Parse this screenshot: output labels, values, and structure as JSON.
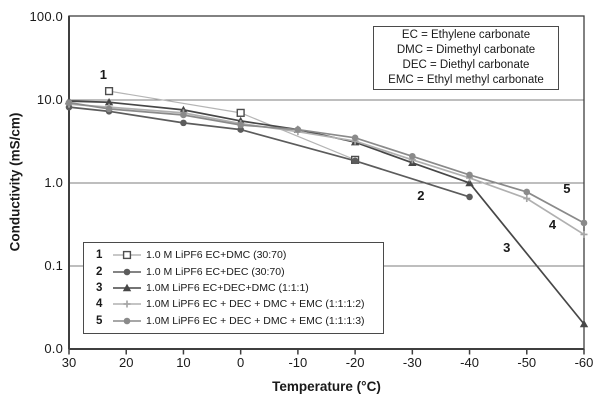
{
  "chart_data": {
    "type": "line",
    "title": "",
    "xlabel": "Temperature (°C)",
    "ylabel": "Conductivity (mS/cm)",
    "y_scale": "log",
    "grid": true,
    "legend_position": "bottom-left",
    "xlim": [
      30,
      -60
    ],
    "ylim": [
      0.01,
      100
    ],
    "x_ticks": [
      30,
      20,
      10,
      0,
      -10,
      -20,
      -30,
      -40,
      -50,
      -60
    ],
    "x_tick_labels": [
      "30",
      "20",
      "10",
      "0",
      "-10",
      "-20",
      "-30",
      "-40",
      "-50",
      "-60"
    ],
    "y_tick_values": [
      100,
      10,
      1,
      0.1,
      0.01
    ],
    "y_tick_labels": [
      "100.0",
      "10.0",
      "1.0",
      "0.1",
      "0.0"
    ],
    "grid_y_values": [
      10,
      1,
      0.1
    ],
    "series": [
      {
        "num": "1",
        "label": "1.0 M LiPF6 EC+DMC (30:70)",
        "marker": "open-square",
        "color": "#b5b5b5",
        "marker_color": "#4d4d4d",
        "points": [
          [
            23,
            12.8
          ],
          [
            0,
            7.0
          ],
          [
            -20,
            1.9
          ]
        ]
      },
      {
        "num": "2",
        "label": "1.0 M LiPF6 EC+DEC (30:70)",
        "marker": "filled-circle",
        "color": "#5c5c5c",
        "marker_color": "#5c5c5c",
        "points": [
          [
            30,
            8.2
          ],
          [
            23,
            7.3
          ],
          [
            10,
            5.3
          ],
          [
            0,
            4.4
          ],
          [
            -20,
            1.85
          ],
          [
            -40,
            0.68
          ]
        ]
      },
      {
        "num": "3",
        "label": "1.0M LiPF6 EC+DEC+DMC (1:1:1)",
        "marker": "filled-triangle",
        "color": "#474747",
        "marker_color": "#474747",
        "points": [
          [
            30,
            9.7
          ],
          [
            23,
            9.4
          ],
          [
            10,
            7.6
          ],
          [
            0,
            5.6
          ],
          [
            -10,
            4.4
          ],
          [
            -20,
            3.1
          ],
          [
            -30,
            1.75
          ],
          [
            -40,
            1.0
          ],
          [
            -60,
            0.02
          ]
        ]
      },
      {
        "num": "4",
        "label": "1.0M LiPF6 EC + DEC + DMC + EMC (1:1:1:2)",
        "marker": "plus",
        "color": "#b0b0b0",
        "marker_color": "#a6a6a6",
        "points": [
          [
            30,
            8.9
          ],
          [
            23,
            8.2
          ],
          [
            10,
            7.0
          ],
          [
            0,
            5.2
          ],
          [
            -10,
            4.15
          ],
          [
            -20,
            3.2
          ],
          [
            -30,
            1.9
          ],
          [
            -40,
            1.15
          ],
          [
            -50,
            0.65
          ],
          [
            -60,
            0.24
          ]
        ]
      },
      {
        "num": "5",
        "label": "1.0M LiPF6 EC + DEC + DMC + EMC (1:1:1:3)",
        "marker": "filled-circle",
        "color": "#8a8a8a",
        "marker_color": "#8a8a8a",
        "points": [
          [
            30,
            9.3
          ],
          [
            23,
            7.8
          ],
          [
            10,
            6.6
          ],
          [
            0,
            5.0
          ],
          [
            -10,
            4.4
          ],
          [
            -20,
            3.5
          ],
          [
            -30,
            2.1
          ],
          [
            -40,
            1.25
          ],
          [
            -50,
            0.78
          ],
          [
            -60,
            0.33
          ]
        ]
      }
    ],
    "annotations": [
      {
        "label": "1",
        "temp": 24,
        "value": 20
      },
      {
        "label": "2",
        "temp": -31.5,
        "value": 0.7
      },
      {
        "label": "3",
        "temp": -46.5,
        "value": 0.165
      },
      {
        "label": "4",
        "temp": -54.5,
        "value": 0.31
      },
      {
        "label": "5",
        "temp": -57,
        "value": 0.85
      }
    ]
  },
  "abbrev_box": {
    "lines": [
      "EC = Ethylene carbonate",
      "DMC = Dimethyl carbonate",
      "DEC = Diethyl carbonate",
      "EMC = Ethyl methyl carbonate"
    ]
  },
  "colors": {
    "axis": "#3f3f3f",
    "grid": "#7d7d7d",
    "text": "#1a1a1a"
  }
}
